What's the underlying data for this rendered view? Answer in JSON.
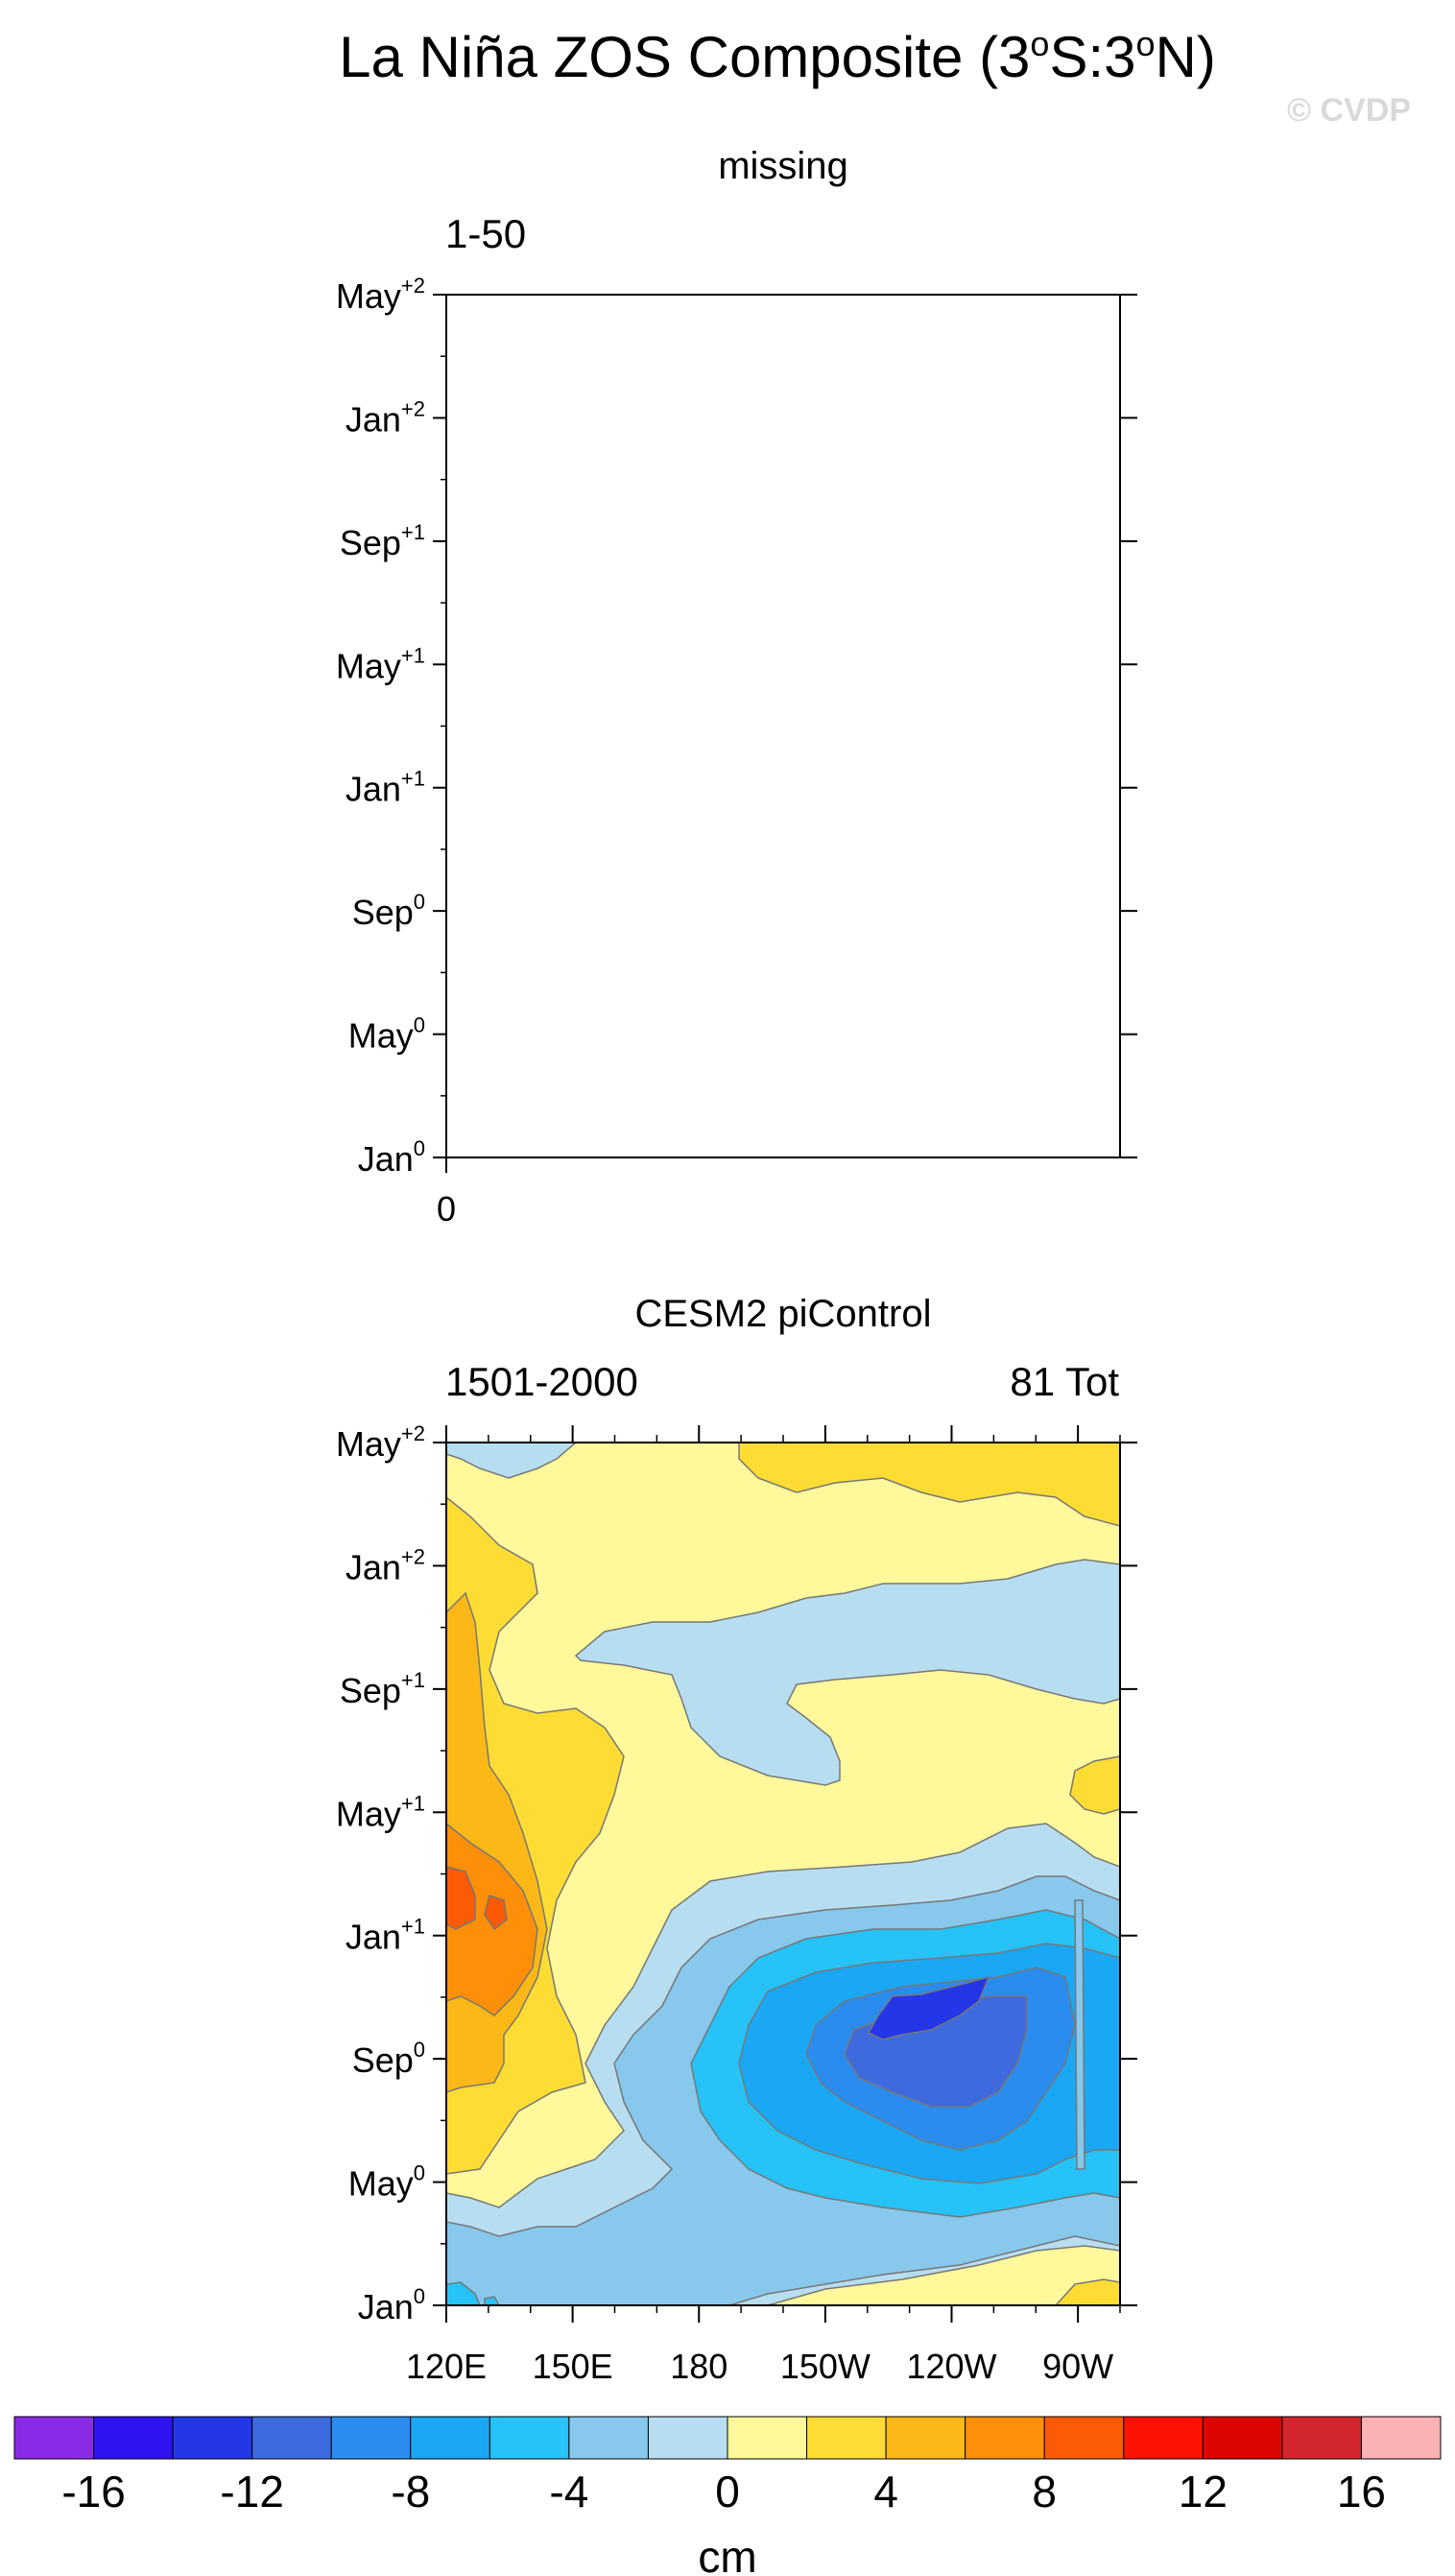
{
  "figure": {
    "title": "La Niña ZOS Composite (3",
    "title_full": [
      "La Niña ZOS Composite (3",
      "o",
      "S:3",
      "o",
      "N)"
    ],
    "watermark": "© CVDP"
  },
  "chart_data": [
    {
      "type": "heatmap",
      "title": "missing",
      "left_label": "1-50",
      "right_label": "",
      "y_ticks": [
        {
          "base": "Jan",
          "sup": "0"
        },
        {
          "base": "May",
          "sup": "0"
        },
        {
          "base": "Sep",
          "sup": "0"
        },
        {
          "base": "Jan",
          "sup": "+1"
        },
        {
          "base": "May",
          "sup": "+1"
        },
        {
          "base": "Sep",
          "sup": "+1"
        },
        {
          "base": "Jan",
          "sup": "+2"
        },
        {
          "base": "May",
          "sup": "+2"
        }
      ],
      "x_ticks": [
        "0"
      ],
      "empty": true
    },
    {
      "type": "heatmap",
      "title": "CESM2 piControl",
      "left_label": "1501-2000",
      "right_label": "81 Tot",
      "x_ticks": [
        "120E",
        "150E",
        "180",
        "150W",
        "120W",
        "90W"
      ],
      "x_values": [
        120,
        150,
        180,
        210,
        240,
        270
      ],
      "xlim": [
        120,
        280
      ],
      "y_ticks": [
        {
          "base": "Jan",
          "sup": "0"
        },
        {
          "base": "May",
          "sup": "0"
        },
        {
          "base": "Sep",
          "sup": "0"
        },
        {
          "base": "Jan",
          "sup": "+1"
        },
        {
          "base": "May",
          "sup": "+1"
        },
        {
          "base": "Sep",
          "sup": "+1"
        },
        {
          "base": "Jan",
          "sup": "+2"
        },
        {
          "base": "May",
          "sup": "+2"
        }
      ],
      "units": "cm"
    }
  ],
  "colorbar": {
    "labels": [
      "-16",
      "-12",
      "-8",
      "-4",
      "0",
      "4",
      "8",
      "12",
      "16"
    ],
    "units": "cm",
    "colors": [
      "#8a2be8",
      "#2e12f0",
      "#2336e8",
      "#3e6ade",
      "#2b8cf0",
      "#1aa8f5",
      "#27c2f7",
      "#87c8ec",
      "#b7def0",
      "#fff99c",
      "#fddc33",
      "#fcb816",
      "#fd8f09",
      "#fc5a05",
      "#fc1204",
      "#dd0502",
      "#d4272d",
      "#fbb2b6"
    ]
  }
}
